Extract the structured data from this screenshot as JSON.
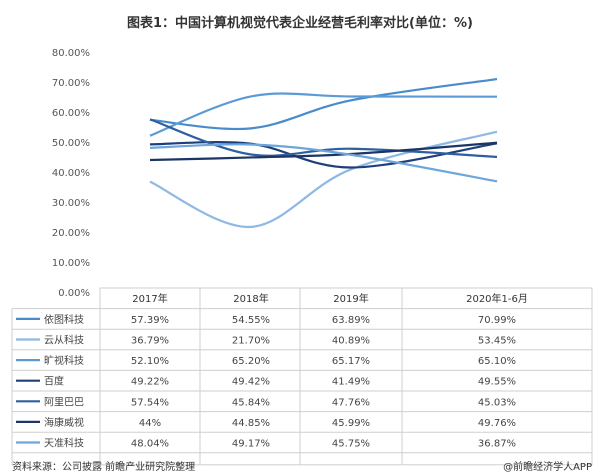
{
  "chart_data": {
    "type": "line",
    "title": "图表1：中国计算机视觉代表企业经营毛利率对比(单位：%)",
    "categories": [
      "2017年",
      "2018年",
      "2019年",
      "2020年1-6月"
    ],
    "y_ticks": [
      "80.00%",
      "70.00%",
      "60.00%",
      "50.00%",
      "40.00%",
      "30.00%",
      "20.00%",
      "10.00%",
      "0.00%"
    ],
    "ylim": [
      0,
      80
    ],
    "series": [
      {
        "name": "依图科技",
        "values": [
          57.39,
          54.55,
          63.89,
          70.99
        ],
        "labels": [
          "57.39%",
          "54.55%",
          "63.89%",
          "70.99%"
        ],
        "color": "#4a8ccb"
      },
      {
        "name": "云从科技",
        "values": [
          36.79,
          21.7,
          40.89,
          53.45
        ],
        "labels": [
          "36.79%",
          "21.70%",
          "40.89%",
          "53.45%"
        ],
        "color": "#8fb8e4"
      },
      {
        "name": "旷视科技",
        "values": [
          52.1,
          65.2,
          65.17,
          65.1
        ],
        "labels": [
          "52.10%",
          "65.20%",
          "65.17%",
          "65.10%"
        ],
        "color": "#5b9bd5"
      },
      {
        "name": "百度",
        "values": [
          49.22,
          49.42,
          41.49,
          49.55
        ],
        "labels": [
          "49.22%",
          "49.42%",
          "41.49%",
          "49.55%"
        ],
        "color": "#1f3f7a"
      },
      {
        "name": "阿里巴巴",
        "values": [
          57.54,
          45.84,
          47.76,
          45.03
        ],
        "labels": [
          "57.54%",
          "45.84%",
          "47.76%",
          "45.03%"
        ],
        "color": "#2f5f9e"
      },
      {
        "name": "海康威视",
        "values": [
          44,
          44.85,
          45.99,
          49.76
        ],
        "labels": [
          "44%",
          "44.85%",
          "45.99%",
          "49.76%"
        ],
        "color": "#1b3566"
      },
      {
        "name": "天准科技",
        "values": [
          48.04,
          49.17,
          45.75,
          36.87
        ],
        "labels": [
          "48.04%",
          "49.17%",
          "45.75%",
          "36.87%"
        ],
        "color": "#6ca6dc"
      }
    ]
  },
  "footer": {
    "source": "资料来源：公司披露 前瞻产业研究院整理",
    "credit": "@前瞻经济学人APP"
  }
}
